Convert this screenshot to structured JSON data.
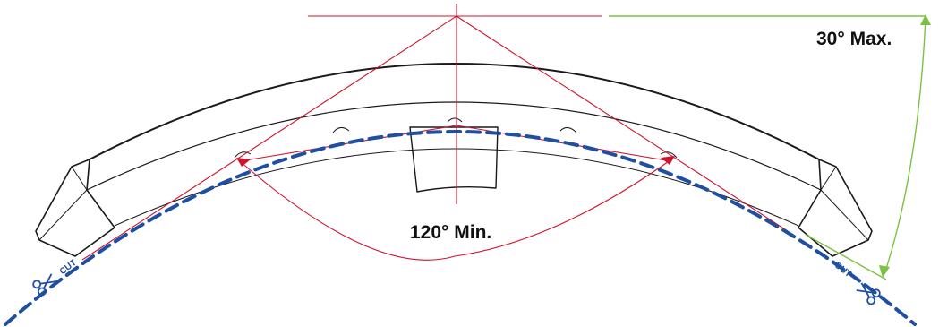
{
  "labels": {
    "max_angle": "30° Max.",
    "min_angle": "120° Min.",
    "cut_left": "CUT",
    "cut_right": "CUT"
  },
  "icons": [
    "scissors-icon",
    "scissors-icon"
  ],
  "colors": {
    "outline": "#1a1a1a",
    "angle_lines": "#d0142c",
    "cut_line": "#1f4fa0",
    "max_angle": "#7cc242",
    "text": "#111111"
  }
}
